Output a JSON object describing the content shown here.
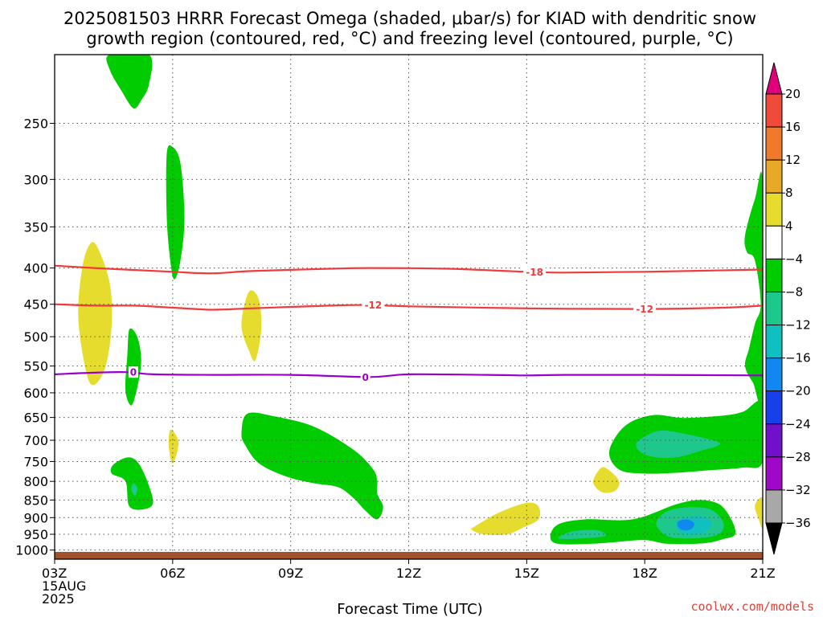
{
  "title": {
    "line1": "2025081503 HRRR Forecast Omega (shaded, μbar/s) for KIAD with dendritic snow",
    "line2": "growth region (contoured, red, °C) and freezing level (contoured, purple, °C)"
  },
  "x_axis_title": "Forecast Time (UTC)",
  "credit": "coolwx.com/models",
  "chart_data": {
    "type": "time-height-section",
    "x": {
      "unit": "forecast hour (UTC)",
      "range": [
        3,
        21
      ],
      "ticks": [
        {
          "hour": 3,
          "label": "03Z",
          "sub1": "15AUG",
          "sub2": "2025"
        },
        {
          "hour": 6,
          "label": "06Z"
        },
        {
          "hour": 9,
          "label": "09Z"
        },
        {
          "hour": 12,
          "label": "12Z"
        },
        {
          "hour": 15,
          "label": "15Z"
        },
        {
          "hour": 18,
          "label": "18Z"
        },
        {
          "hour": 21,
          "label": "21Z"
        }
      ]
    },
    "y": {
      "unit": "hPa",
      "scale": "log",
      "range": [
        1030,
        200
      ],
      "ticks": [
        250,
        300,
        350,
        400,
        450,
        500,
        550,
        600,
        650,
        700,
        750,
        800,
        850,
        900,
        950,
        1000
      ]
    },
    "grid": true,
    "colorbar": {
      "labels": [
        "20",
        "16",
        "12",
        "8",
        "4",
        "−4",
        "−8",
        "−12",
        "−16",
        "−20",
        "−24",
        "−28",
        "−32",
        "−36"
      ],
      "colors": [
        "#e0007a",
        "#f04a3a",
        "#f07a2a",
        "#e8a828",
        "#e6dc2e",
        "#ffffff",
        "#00cc00",
        "#1ec88c",
        "#10c0c0",
        "#1088f0",
        "#1840e8",
        "#7010c8",
        "#a008c8",
        "#a8a8a8",
        "#000000"
      ]
    },
    "contours": [
      {
        "kind": "dendritic",
        "label": "-18",
        "color": "#ef3b3b",
        "points": [
          [
            3,
            397
          ],
          [
            4,
            400
          ],
          [
            6,
            405
          ],
          [
            7,
            407
          ],
          [
            8,
            404
          ],
          [
            10,
            401
          ],
          [
            11,
            400
          ],
          [
            13,
            401
          ],
          [
            15,
            405
          ],
          [
            16,
            406
          ],
          [
            18,
            405
          ],
          [
            21,
            402
          ]
        ]
      },
      {
        "kind": "dendritic",
        "label": "-12",
        "color": "#ef3b3b",
        "points": [
          [
            3,
            450
          ],
          [
            4,
            452
          ],
          [
            5,
            452
          ],
          [
            6,
            455
          ],
          [
            7,
            458
          ],
          [
            8,
            456
          ],
          [
            10,
            452
          ],
          [
            11,
            451
          ],
          [
            12,
            453
          ],
          [
            15,
            456
          ],
          [
            18,
            457
          ],
          [
            20,
            455
          ],
          [
            21,
            452
          ]
        ]
      },
      {
        "kind": "freezing",
        "label": "0",
        "color": "#9900cc",
        "points": [
          [
            3,
            565
          ],
          [
            4,
            562
          ],
          [
            4.8,
            561
          ],
          [
            5.5,
            565
          ],
          [
            7,
            566
          ],
          [
            9,
            566
          ],
          [
            11,
            570
          ],
          [
            12,
            565
          ],
          [
            14,
            566
          ],
          [
            15,
            567
          ],
          [
            16,
            566
          ],
          [
            18,
            566
          ],
          [
            21,
            567
          ]
        ]
      }
    ],
    "contour_labels": [
      {
        "label": "-18",
        "hour": 15.2,
        "hPa": 405
      },
      {
        "label": "-12",
        "hour": 11.1,
        "hPa": 451
      },
      {
        "label": "-12",
        "hour": 18.0,
        "hPa": 457
      },
      {
        "label": "0",
        "hour": 5.0,
        "hPa": 561
      },
      {
        "label": "0",
        "hour": 10.9,
        "hPa": 570
      }
    ],
    "omega_regions": [
      {
        "value": -6,
        "color": "#00cc00",
        "points": [
          [
            4.4,
            200
          ],
          [
            5.4,
            200
          ],
          [
            5.4,
            220
          ],
          [
            5.2,
            232
          ],
          [
            5.0,
            238
          ],
          [
            4.7,
            225
          ],
          [
            4.4,
            210
          ]
        ]
      },
      {
        "value": -6,
        "color": "#00cc00",
        "points": [
          [
            5.85,
            276
          ],
          [
            6.0,
            270
          ],
          [
            6.2,
            285
          ],
          [
            6.3,
            340
          ],
          [
            6.2,
            390
          ],
          [
            6.05,
            415
          ],
          [
            5.95,
            395
          ],
          [
            5.85,
            340
          ]
        ]
      },
      {
        "value": 6,
        "color": "#e6dc2e",
        "points": [
          [
            3.9,
            370
          ],
          [
            4.1,
            375
          ],
          [
            4.4,
            420
          ],
          [
            4.45,
            480
          ],
          [
            4.3,
            550
          ],
          [
            4.0,
            585
          ],
          [
            3.8,
            560
          ],
          [
            3.6,
            470
          ],
          [
            3.7,
            400
          ]
        ]
      },
      {
        "value": 6,
        "color": "#e6dc2e",
        "points": [
          [
            8.0,
            430
          ],
          [
            8.2,
            445
          ],
          [
            8.25,
            490
          ],
          [
            8.1,
            540
          ],
          [
            7.95,
            525
          ],
          [
            7.75,
            485
          ],
          [
            7.85,
            445
          ]
        ]
      },
      {
        "value": -6,
        "color": "#00cc00",
        "points": [
          [
            4.9,
            488
          ],
          [
            5.1,
            500
          ],
          [
            5.2,
            540
          ],
          [
            5.1,
            590
          ],
          [
            4.95,
            625
          ],
          [
            4.8,
            595
          ],
          [
            4.85,
            530
          ]
        ]
      },
      {
        "value": 6,
        "color": "#e6dc2e",
        "points": [
          [
            5.95,
            676
          ],
          [
            6.15,
            705
          ],
          [
            6.0,
            755
          ],
          [
            5.9,
            712
          ]
        ]
      },
      {
        "value": -6,
        "color": "#00cc00",
        "points": [
          [
            4.5,
            757
          ],
          [
            4.9,
            740
          ],
          [
            5.2,
            765
          ],
          [
            5.5,
            850
          ],
          [
            5.3,
            875
          ],
          [
            4.9,
            868
          ],
          [
            4.8,
            800
          ],
          [
            4.45,
            780
          ]
        ]
      },
      {
        "value": -10,
        "color": "#1ec88c",
        "points": [
          [
            5.0,
            805
          ],
          [
            5.1,
            818
          ],
          [
            5.05,
            838
          ],
          [
            4.95,
            822
          ]
        ]
      },
      {
        "value": -6,
        "color": "#00cc00",
        "points": [
          [
            7.9,
            642
          ],
          [
            8.6,
            648
          ],
          [
            9.6,
            670
          ],
          [
            10.6,
            722
          ],
          [
            11.1,
            770
          ],
          [
            11.2,
            800
          ],
          [
            11.2,
            832
          ],
          [
            11.35,
            870
          ],
          [
            11.2,
            905
          ],
          [
            10.9,
            880
          ],
          [
            10.6,
            845
          ],
          [
            10.2,
            815
          ],
          [
            9.6,
            805
          ],
          [
            8.9,
            788
          ],
          [
            8.2,
            755
          ],
          [
            7.85,
            712
          ],
          [
            7.75,
            685
          ]
        ]
      },
      {
        "value": 6,
        "color": "#e6dc2e",
        "points": [
          [
            13.7,
            925
          ],
          [
            14.3,
            885
          ],
          [
            15.0,
            858
          ],
          [
            15.3,
            868
          ],
          [
            15.3,
            905
          ],
          [
            14.9,
            930
          ],
          [
            14.5,
            950
          ],
          [
            13.9,
            950
          ],
          [
            13.6,
            936
          ]
        ]
      },
      {
        "value": -6,
        "color": "#00cc00",
        "points": [
          [
            15.6,
            958
          ],
          [
            15.8,
            920
          ],
          [
            16.5,
            905
          ],
          [
            17.7,
            905
          ],
          [
            18.8,
            862
          ],
          [
            19.4,
            850
          ],
          [
            19.9,
            862
          ],
          [
            20.2,
            905
          ],
          [
            20.3,
            950
          ],
          [
            20.0,
            965
          ],
          [
            19.5,
            978
          ],
          [
            18.6,
            980
          ],
          [
            18.0,
            968
          ],
          [
            17.2,
            975
          ],
          [
            16.6,
            980
          ],
          [
            15.8,
            980
          ]
        ]
      },
      {
        "value": -10,
        "color": "#1ec88c",
        "points": [
          [
            15.8,
            960
          ],
          [
            16.2,
            940
          ],
          [
            16.8,
            938
          ],
          [
            17.0,
            955
          ],
          [
            16.5,
            962
          ],
          [
            16.0,
            965
          ]
        ]
      },
      {
        "value": -10,
        "color": "#1ec88c",
        "points": [
          [
            18.3,
            912
          ],
          [
            18.6,
            880
          ],
          [
            19.2,
            870
          ],
          [
            19.7,
            878
          ],
          [
            20.0,
            915
          ],
          [
            19.9,
            948
          ],
          [
            19.4,
            962
          ],
          [
            18.7,
            960
          ],
          [
            18.4,
            940
          ]
        ]
      },
      {
        "value": -14,
        "color": "#10c0c0",
        "points": [
          [
            18.9,
            905
          ],
          [
            19.4,
            895
          ],
          [
            19.7,
            915
          ],
          [
            19.5,
            945
          ],
          [
            19.0,
            948
          ],
          [
            18.8,
            928
          ]
        ]
      },
      {
        "value": -18,
        "color": "#1088f0",
        "points": [
          [
            18.85,
            912
          ],
          [
            19.05,
            905
          ],
          [
            19.25,
            915
          ],
          [
            19.2,
            933
          ],
          [
            19.0,
            938
          ],
          [
            18.85,
            928
          ]
        ]
      },
      {
        "value": -6,
        "color": "#00cc00",
        "points": [
          [
            17.1,
            725
          ],
          [
            17.5,
            668
          ],
          [
            18.2,
            645
          ],
          [
            19.0,
            651
          ],
          [
            20.0,
            646
          ],
          [
            20.5,
            638
          ],
          [
            21.0,
            620
          ],
          [
            21.0,
            750
          ],
          [
            20.5,
            765
          ],
          [
            19.6,
            772
          ],
          [
            18.8,
            778
          ],
          [
            18.0,
            780
          ],
          [
            17.35,
            770
          ]
        ]
      },
      {
        "value": -10,
        "color": "#1ec88c",
        "points": [
          [
            17.8,
            705
          ],
          [
            18.3,
            680
          ],
          [
            18.8,
            682
          ],
          [
            19.9,
            706
          ],
          [
            19.4,
            725
          ],
          [
            18.8,
            740
          ],
          [
            18.3,
            740
          ],
          [
            17.9,
            728
          ]
        ]
      },
      {
        "value": 6,
        "color": "#e6dc2e",
        "points": [
          [
            16.7,
            795
          ],
          [
            16.9,
            765
          ],
          [
            17.1,
            772
          ],
          [
            17.35,
            800
          ],
          [
            17.25,
            825
          ],
          [
            16.95,
            830
          ],
          [
            16.75,
            815
          ]
        ]
      },
      {
        "value": 6,
        "color": "#e6dc2e",
        "points": [
          [
            20.8,
            865
          ],
          [
            21.0,
            845
          ],
          [
            21.0,
            930
          ],
          [
            20.9,
            905
          ]
        ]
      },
      {
        "value": -6,
        "color": "#00cc00",
        "points": [
          [
            21.0,
            305
          ],
          [
            20.8,
            320
          ],
          [
            20.55,
            360
          ],
          [
            20.6,
            380
          ],
          [
            20.8,
            390
          ],
          [
            20.95,
            450
          ],
          [
            20.8,
            480
          ],
          [
            20.65,
            520
          ],
          [
            20.55,
            550
          ],
          [
            20.75,
            580
          ],
          [
            21.0,
            600
          ]
        ]
      }
    ],
    "terrain": {
      "color": "#a0522d",
      "surface_hPa": 1006
    }
  }
}
